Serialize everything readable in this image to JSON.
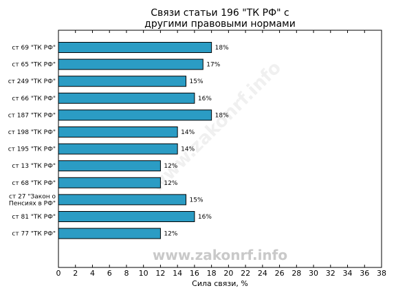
{
  "chart_data": {
    "type": "bar",
    "orientation": "horizontal",
    "title": "Связи статьи 196 \"ТК РФ\" с другими правовыми нормами",
    "title_lines": [
      "Связи статьи 196 \"ТК РФ\" с",
      "другими правовыми нормами"
    ],
    "xlabel": "Сила связи, %",
    "ylabel": "",
    "xlim": [
      0,
      38
    ],
    "xticks": [
      0,
      2,
      4,
      6,
      8,
      10,
      12,
      14,
      16,
      18,
      20,
      22,
      24,
      26,
      28,
      30,
      32,
      34,
      36,
      38
    ],
    "categories": [
      [
        "ст 69 \"ТК РФ\""
      ],
      [
        "ст 65 \"ТК РФ\""
      ],
      [
        "ст 249 \"ТК РФ\""
      ],
      [
        "ст 66 \"ТК РФ\""
      ],
      [
        "ст 187 \"ТК РФ\""
      ],
      [
        "ст 198 \"ТК РФ\""
      ],
      [
        "ст 195 \"ТК РФ\""
      ],
      [
        "ст 13 \"ТК РФ\""
      ],
      [
        "ст 68 \"ТК РФ\""
      ],
      [
        "ст 27 \"Закон о",
        "Пенсиях в РФ\""
      ],
      [
        "ст 81 \"ТК РФ\""
      ],
      [
        "ст 77 \"ТК РФ\""
      ]
    ],
    "values": [
      18,
      17,
      15,
      16,
      18,
      14,
      14,
      12,
      12,
      15,
      16,
      12
    ],
    "value_labels": [
      "18%",
      "17%",
      "15%",
      "16%",
      "18%",
      "14%",
      "14%",
      "12%",
      "12%",
      "15%",
      "16%",
      "12%"
    ],
    "bar_color": "#2b9cc4",
    "bar_edge_color": "#000000",
    "grid": false,
    "watermark": "www.zakonrf.info"
  }
}
